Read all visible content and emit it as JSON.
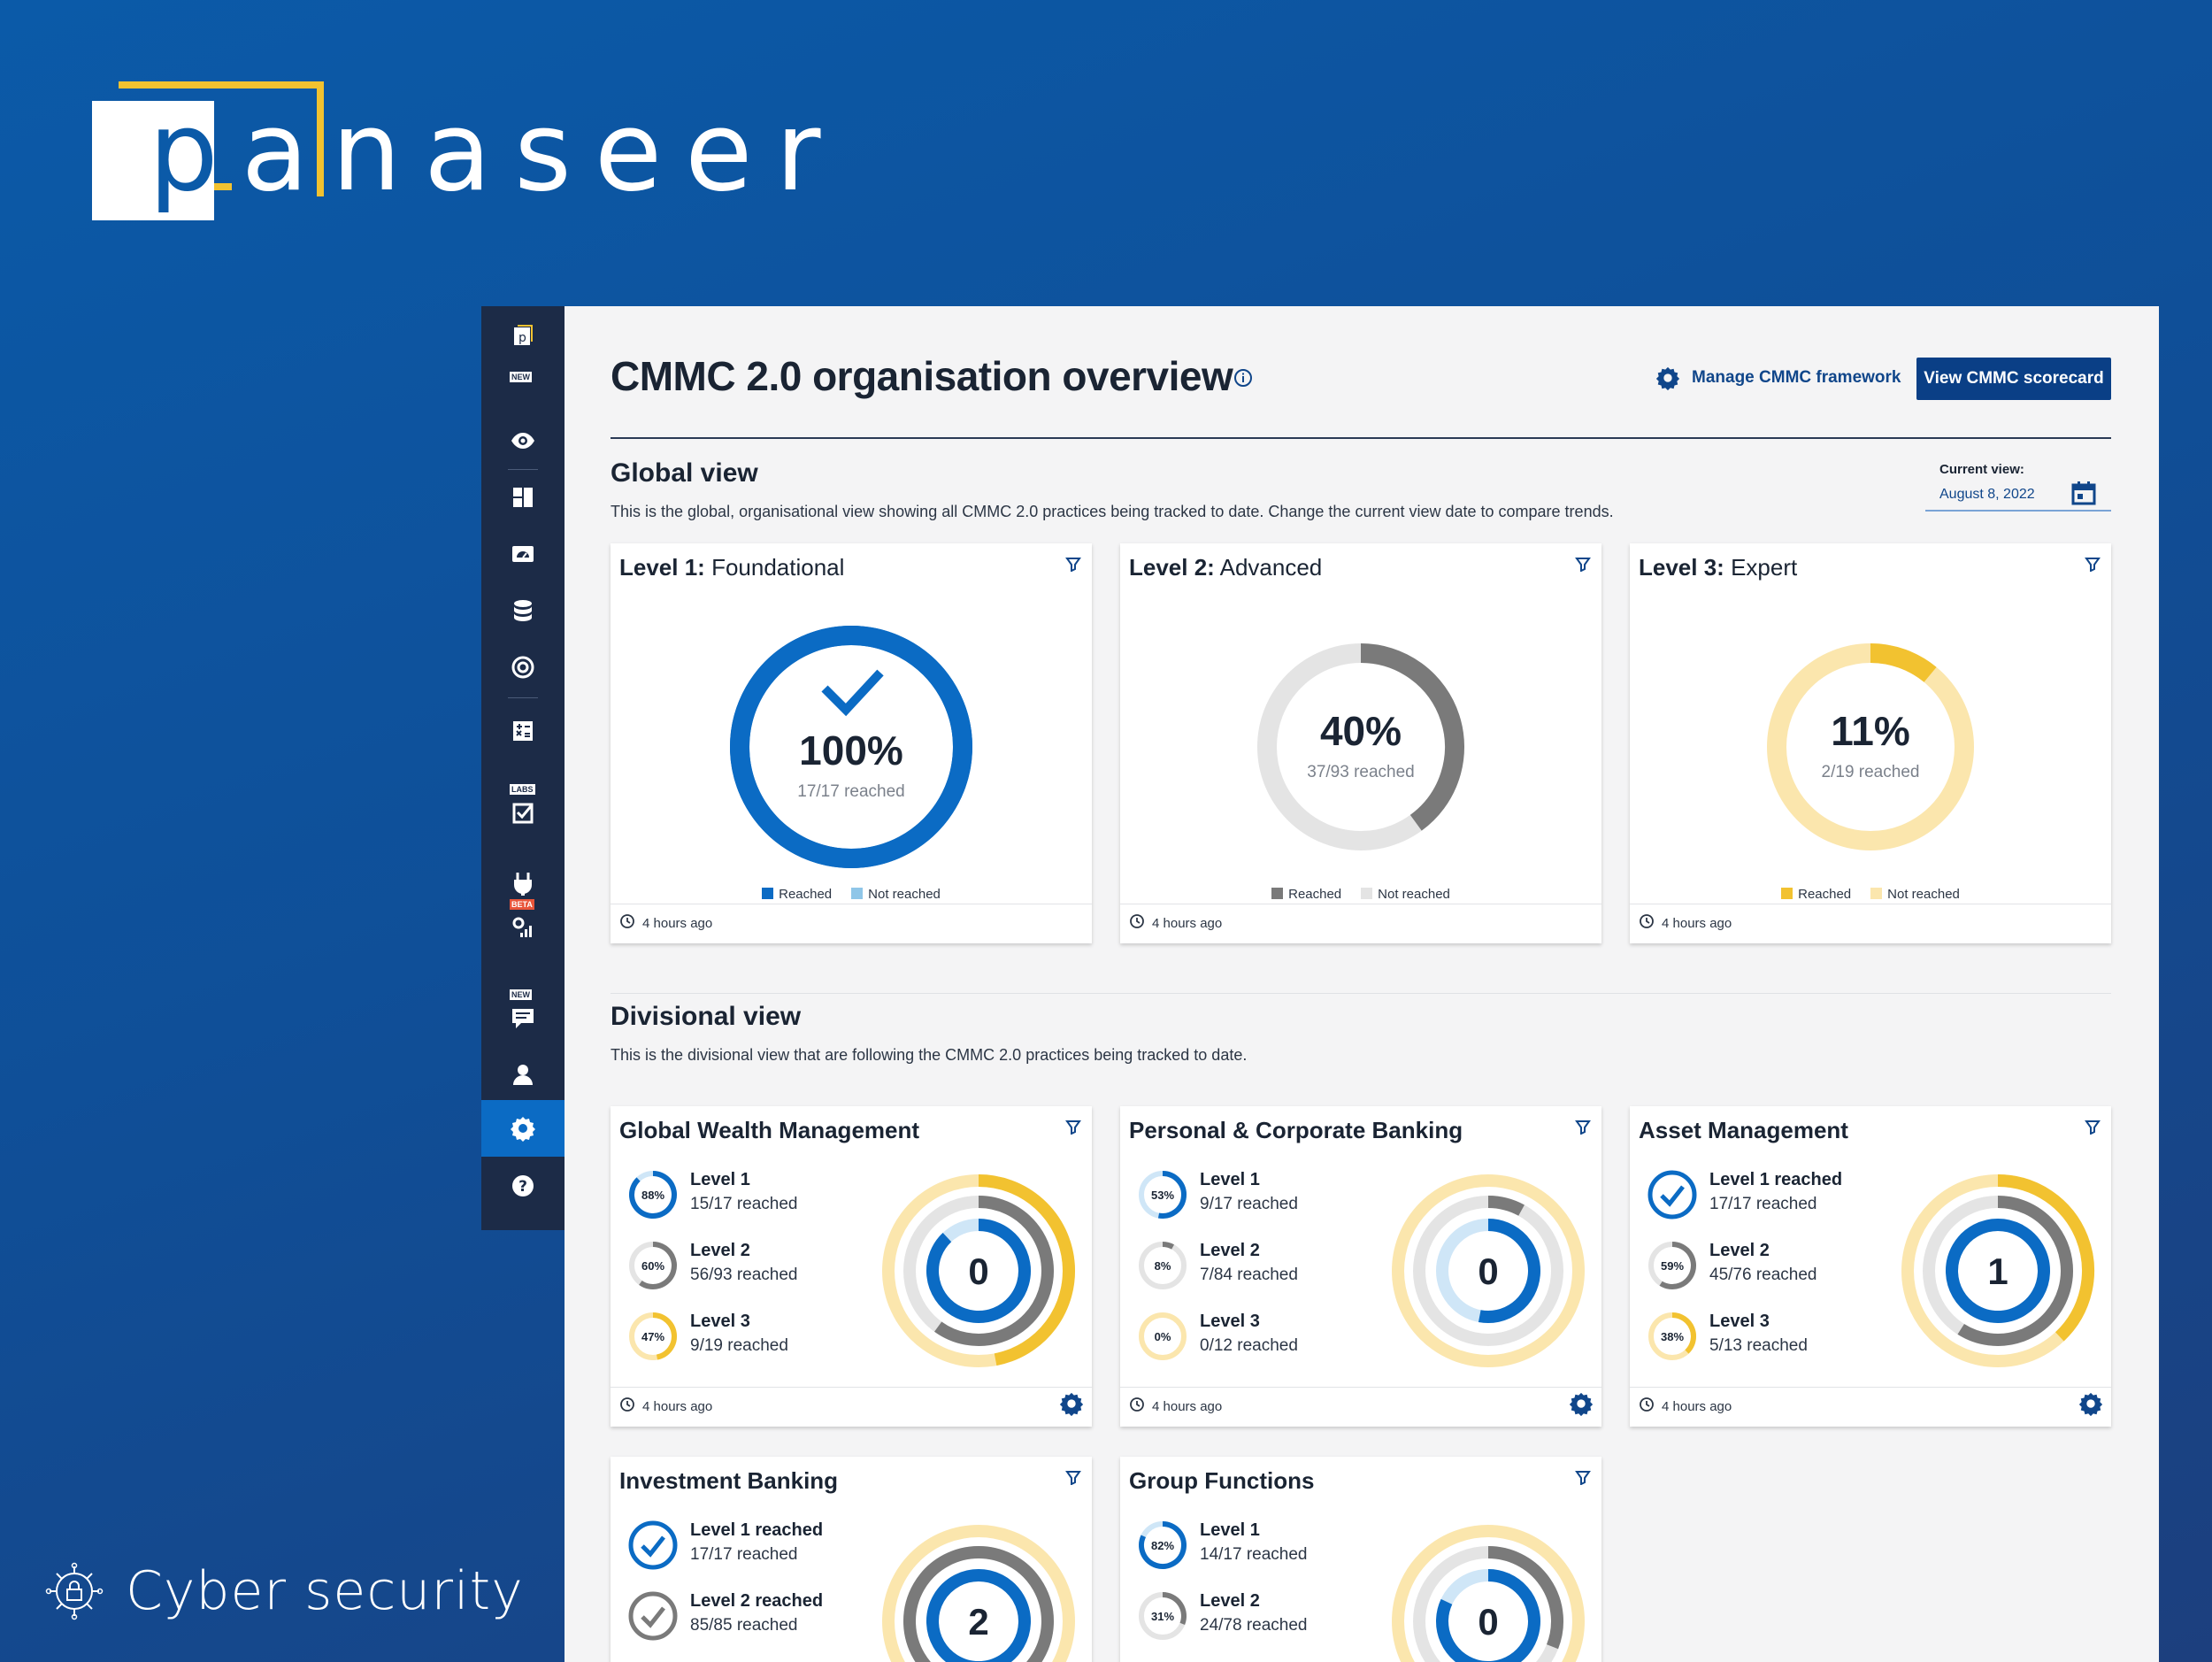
{
  "brand": {
    "name": "panaseer",
    "tagline": "Cyber security"
  },
  "nav": {
    "tags": {
      "new_top": "NEW",
      "labs": "LABS",
      "beta": "BETA",
      "new_chat": "NEW"
    }
  },
  "header": {
    "title": "CMMC 2.0 organisation overview",
    "manage_label": "Manage CMMC framework",
    "view_button": "View CMMC scorecard"
  },
  "global_view": {
    "heading": "Global view",
    "description": "This is the global, organisational view showing all CMMC 2.0 practices being tracked to date. Change the current view date to compare trends.",
    "current_view_label": "Current view:",
    "current_view_date": "August 8, 2022",
    "levels": [
      {
        "title_bold": "Level 1:",
        "title_rest": "Foundational",
        "percent": "100%",
        "reached_text": "17/17 reached",
        "fraction": 1.0,
        "reached_label": "Reached",
        "not_reached_label": "Not reached",
        "updated": "4 hours ago",
        "color": "#0b6bc4",
        "track": "#0b6bc4",
        "swatch_not": "#8fc6e8"
      },
      {
        "title_bold": "Level 2:",
        "title_rest": "Advanced",
        "percent": "40%",
        "reached_text": "37/93 reached",
        "fraction": 0.4,
        "reached_label": "Reached",
        "not_reached_label": "Not reached",
        "updated": "4 hours ago",
        "color": "#7a7a7a",
        "track": "#e4e4e4",
        "swatch_not": "#e4e4e4"
      },
      {
        "title_bold": "Level 3:",
        "title_rest": "Expert",
        "percent": "11%",
        "reached_text": "2/19 reached",
        "fraction": 0.11,
        "reached_label": "Reached",
        "not_reached_label": "Not reached",
        "updated": "4 hours ago",
        "color": "#f2c230",
        "track": "#fbe6ad",
        "swatch_not": "#fbe6ad"
      }
    ]
  },
  "divisional_view": {
    "heading": "Divisional view",
    "description": "This is the divisional view that are following the CMMC 2.0 practices being tracked to date.",
    "divisions": [
      {
        "name": "Global Wealth Management",
        "count": "0",
        "updated": "4 hours ago",
        "levels": [
          {
            "label": "Level 1",
            "reached": "15/17 reached",
            "pct_text": "88%",
            "fraction": 0.88,
            "complete": false
          },
          {
            "label": "Level 2",
            "reached": "56/93 reached",
            "pct_text": "60%",
            "fraction": 0.6,
            "complete": false
          },
          {
            "label": "Level 3",
            "reached": "9/19 reached",
            "pct_text": "47%",
            "fraction": 0.47,
            "complete": false
          }
        ]
      },
      {
        "name": "Personal & Corporate Banking",
        "count": "0",
        "updated": "4 hours ago",
        "levels": [
          {
            "label": "Level 1",
            "reached": "9/17 reached",
            "pct_text": "53%",
            "fraction": 0.53,
            "complete": false
          },
          {
            "label": "Level 2",
            "reached": "7/84 reached",
            "pct_text": "8%",
            "fraction": 0.08,
            "complete": false
          },
          {
            "label": "Level 3",
            "reached": "0/12 reached",
            "pct_text": "0%",
            "fraction": 0.0,
            "complete": false
          }
        ]
      },
      {
        "name": "Asset Management",
        "count": "1",
        "updated": "4 hours ago",
        "levels": [
          {
            "label": "Level 1 reached",
            "reached": "17/17 reached",
            "pct_text": "",
            "fraction": 1.0,
            "complete": true
          },
          {
            "label": "Level 2",
            "reached": "45/76 reached",
            "pct_text": "59%",
            "fraction": 0.59,
            "complete": false
          },
          {
            "label": "Level 3",
            "reached": "5/13 reached",
            "pct_text": "38%",
            "fraction": 0.38,
            "complete": false
          }
        ]
      },
      {
        "name": "Investment Banking",
        "count": "2",
        "updated": "",
        "levels": [
          {
            "label": "Level 1 reached",
            "reached": "17/17 reached",
            "pct_text": "",
            "fraction": 1.0,
            "complete": true
          },
          {
            "label": "Level 2 reached",
            "reached": "85/85 reached",
            "pct_text": "",
            "fraction": 1.0,
            "complete": true
          }
        ]
      },
      {
        "name": "Group Functions",
        "count": "0",
        "updated": "",
        "levels": [
          {
            "label": "Level 1",
            "reached": "14/17 reached",
            "pct_text": "82%",
            "fraction": 0.82,
            "complete": false
          },
          {
            "label": "Level 2",
            "reached": "24/78 reached",
            "pct_text": "31%",
            "fraction": 0.31,
            "complete": false
          }
        ]
      }
    ]
  },
  "colors": {
    "level1": "#0b6bc4",
    "level1_track": "#cfe6f7",
    "level2": "#7a7a7a",
    "level2_track": "#e4e4e4",
    "level3": "#f2c230",
    "level3_track": "#fbe6ad",
    "primary_button": "#0a3f86",
    "nav_bg": "#1c2b47"
  }
}
